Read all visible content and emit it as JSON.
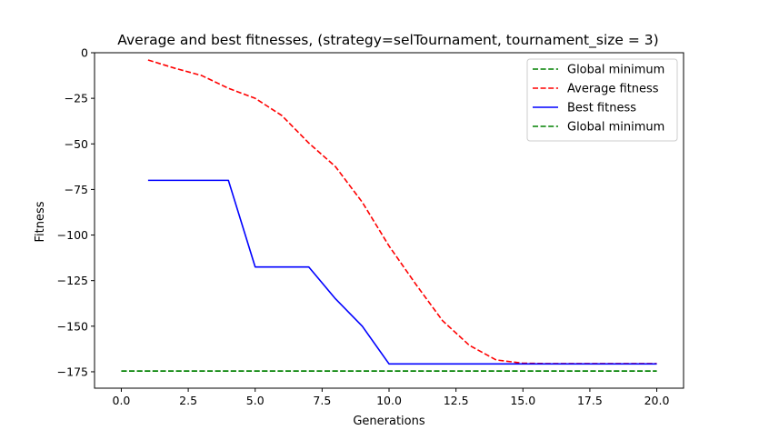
{
  "chart_data": {
    "type": "line",
    "title": "Average and best fitnesses, (strategy=selTournament, tournament_size = 3)",
    "xlabel": "Generations",
    "ylabel": "Fitness",
    "xlim": [
      -1.0,
      21.0
    ],
    "ylim": [
      -184,
      0
    ],
    "xticks": [
      0.0,
      2.5,
      5.0,
      7.5,
      10.0,
      12.5,
      15.0,
      17.5,
      20.0
    ],
    "xtick_labels": [
      "0.0",
      "2.5",
      "5.0",
      "7.5",
      "10.0",
      "12.5",
      "15.0",
      "17.5",
      "20.0"
    ],
    "yticks": [
      0,
      -25,
      -50,
      -75,
      -100,
      -125,
      -150,
      -175
    ],
    "ytick_labels": [
      "0",
      "−25",
      "−50",
      "−75",
      "−100",
      "−125",
      "−150",
      "−175"
    ],
    "grid": false,
    "legend_position": "top-right",
    "series": [
      {
        "name": "Global minimum",
        "color": "#008000",
        "style": "dashed",
        "x": [
          0,
          20
        ],
        "y": [
          -174.6,
          -174.6
        ]
      },
      {
        "name": "Average fitness",
        "color": "#ff0000",
        "style": "dashed",
        "x": [
          1,
          2,
          3,
          4,
          5,
          6,
          7,
          8,
          9,
          10,
          11,
          12,
          13,
          14,
          15,
          16,
          17,
          18,
          19,
          20
        ],
        "y": [
          -4,
          -8.5,
          -12.5,
          -19.5,
          -25,
          -34.5,
          -49.5,
          -62.5,
          -82,
          -106,
          -127,
          -147,
          -160.5,
          -168.5,
          -170.3,
          -170.5,
          -170.5,
          -170.5,
          -170.5,
          -170.5
        ]
      },
      {
        "name": "Best fitness",
        "color": "#0000ff",
        "style": "solid",
        "x": [
          1,
          2,
          3,
          4,
          5,
          6,
          7,
          8,
          9,
          10,
          11,
          12,
          13,
          14,
          15,
          16,
          17,
          18,
          19,
          20
        ],
        "y": [
          -70,
          -70,
          -70,
          -70,
          -117.5,
          -117.5,
          -117.5,
          -135,
          -150,
          -170.7,
          -170.7,
          -170.7,
          -170.7,
          -170.7,
          -170.7,
          -170.7,
          -170.7,
          -170.7,
          -170.7,
          -170.7
        ]
      },
      {
        "name": "Global minimum",
        "color": "#008000",
        "style": "dashed",
        "x": [
          0,
          20
        ],
        "y": [
          -174.6,
          -174.6
        ]
      }
    ]
  }
}
